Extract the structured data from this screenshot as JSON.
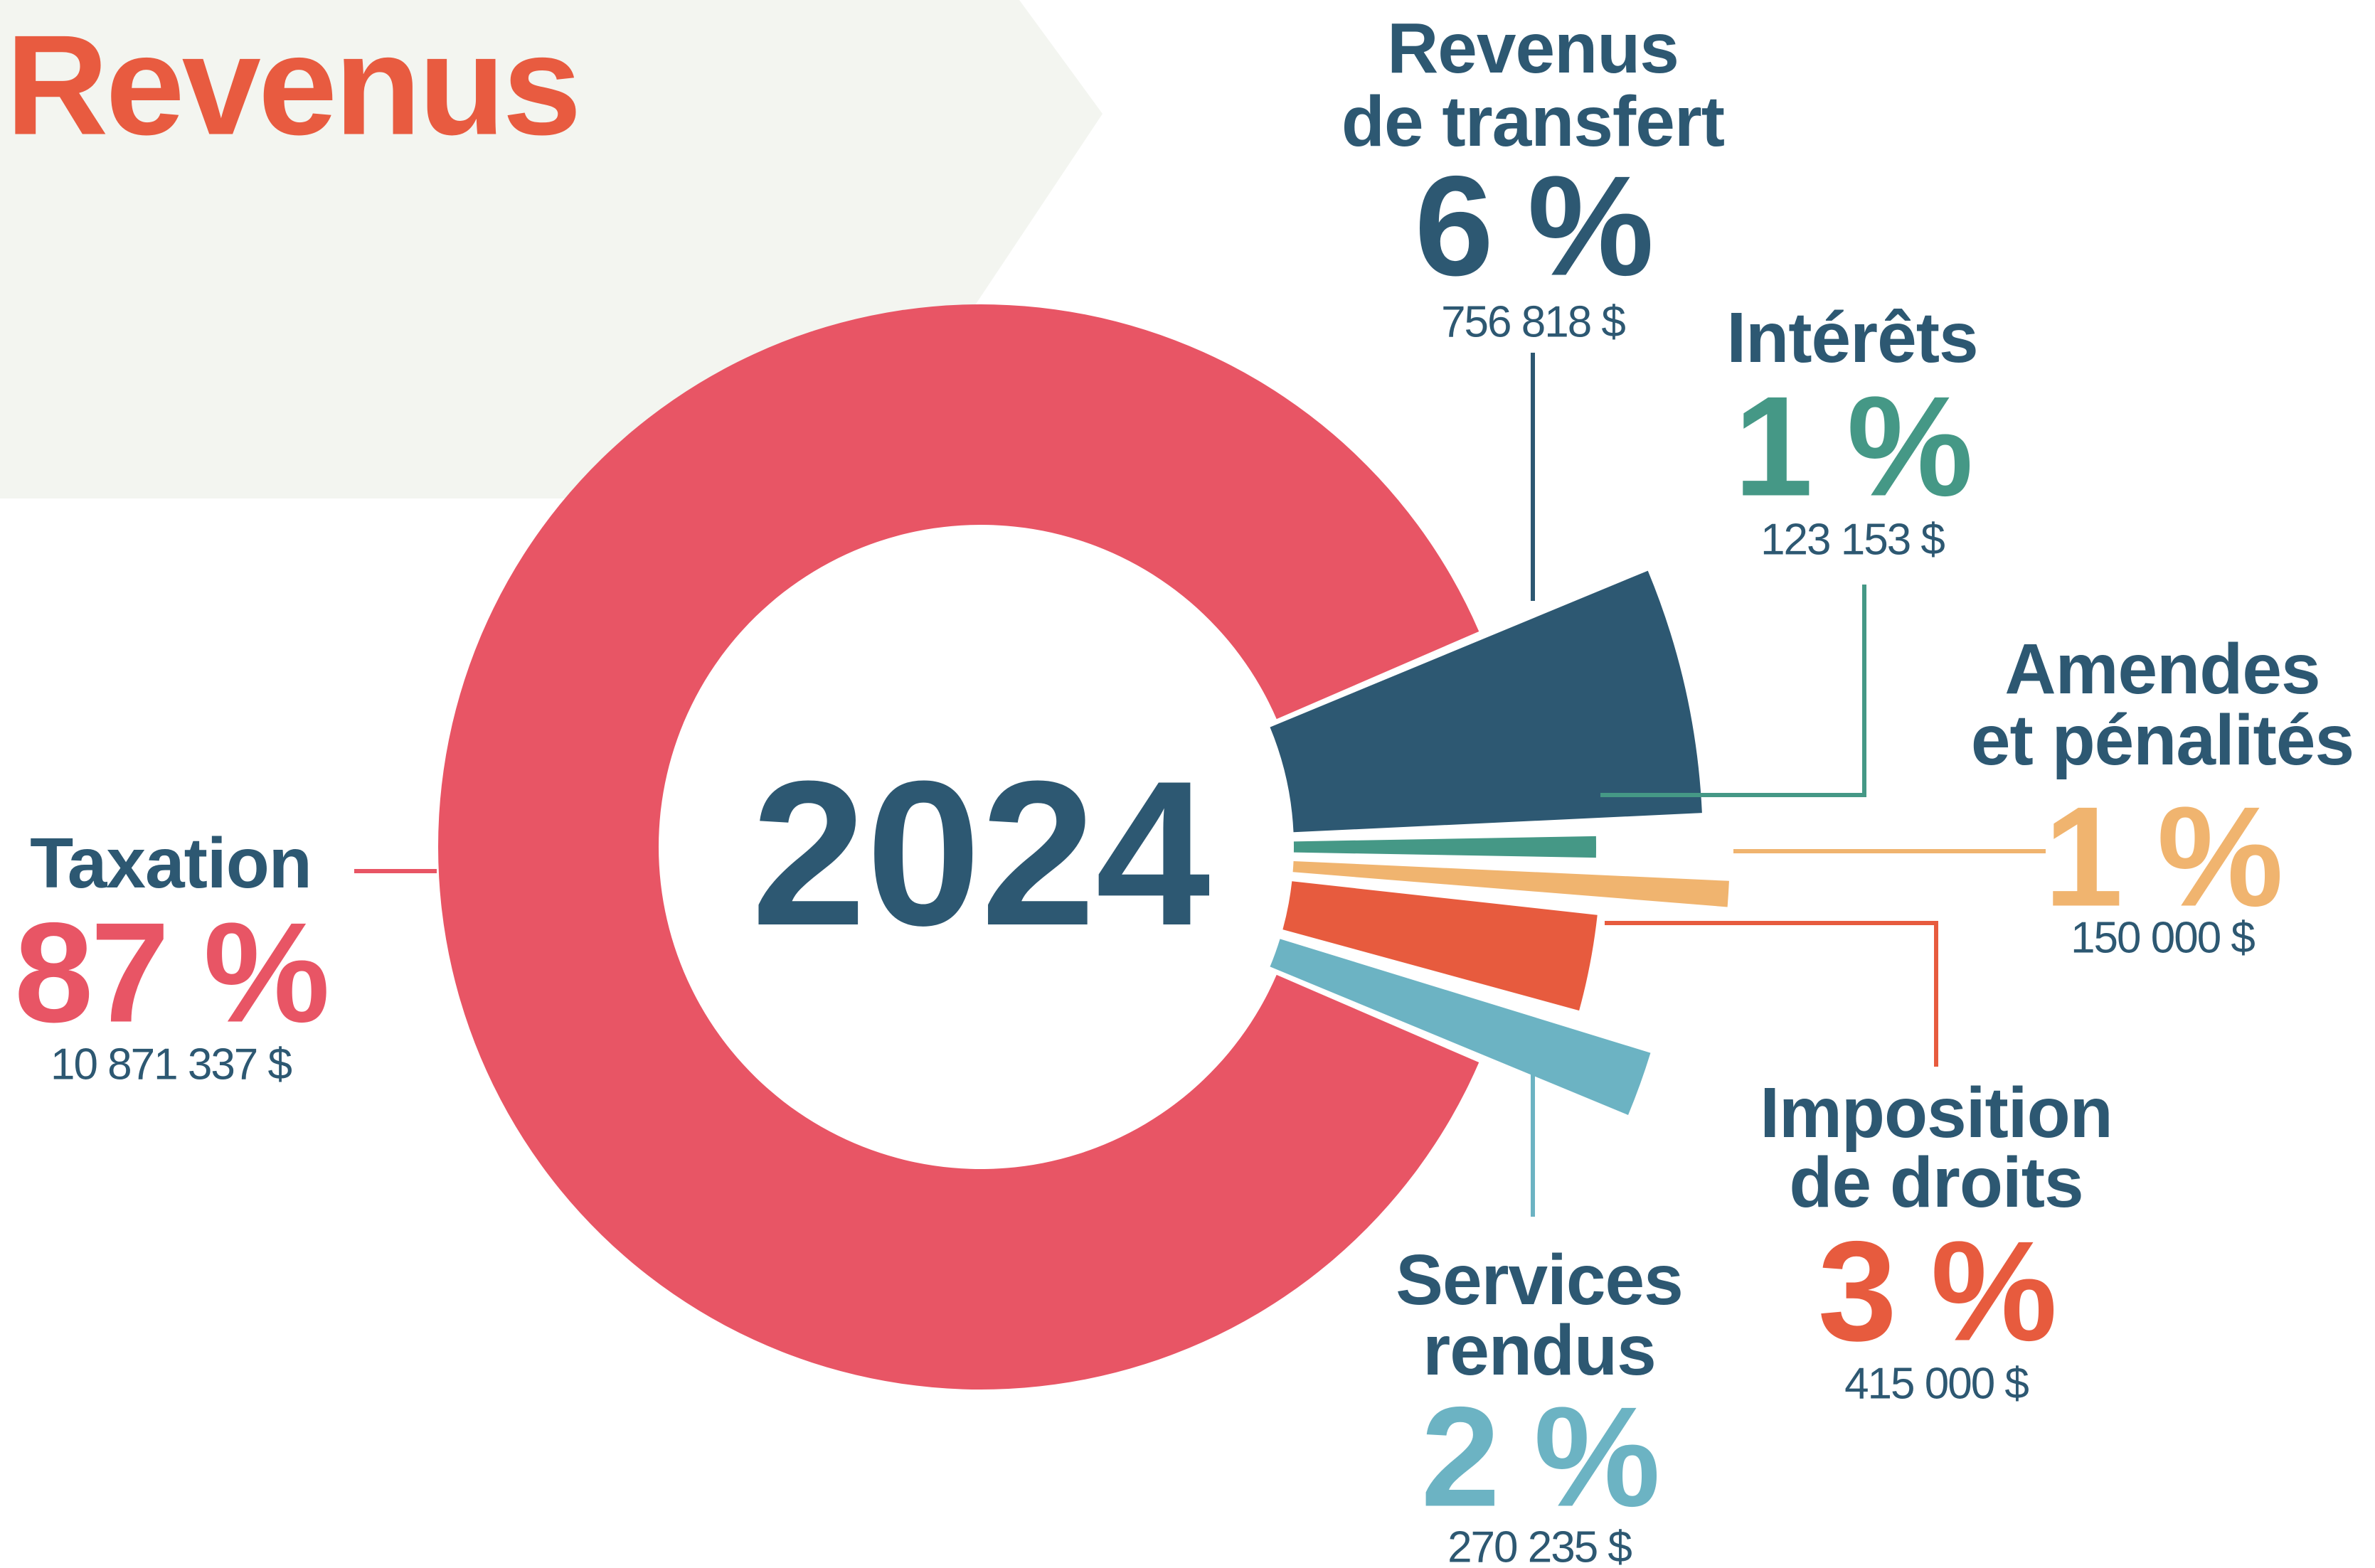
{
  "chart_data": {
    "type": "pie",
    "title": "Revenus",
    "center_label": "2024",
    "categories": [
      [
        "Taxation"
      ],
      [
        "Revenus",
        "de transfert"
      ],
      [
        "Intérêts"
      ],
      [
        "Amendes",
        "et pénalités"
      ],
      [
        "Imposition",
        "de droits"
      ],
      [
        "Services",
        "rendus"
      ]
    ],
    "values": [
      87,
      6,
      1,
      1,
      3,
      2
    ],
    "value_labels": [
      "87 %",
      "6 %",
      "1 %",
      "1 %",
      "3 %",
      "2 %"
    ],
    "amount_labels": [
      "10 871 337 $",
      "756 818 $",
      "123 153 $",
      "150 000 $",
      "415 000 $",
      "270 235 $"
    ],
    "colors": [
      "#e85565",
      "#2d5872",
      "#459886",
      "#f0b46f",
      "#e75b3e",
      "#6cb3c3"
    ]
  }
}
